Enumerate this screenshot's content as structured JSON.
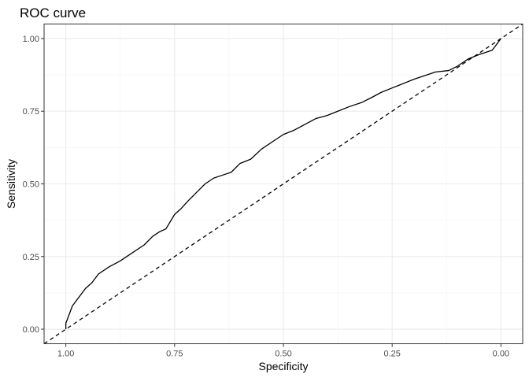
{
  "chart_data": {
    "type": "line",
    "title": "ROC curve",
    "xlabel": "Specificity",
    "ylabel": "Sensitivity",
    "x_axis_reversed": true,
    "xlim": [
      1.05,
      -0.05
    ],
    "ylim": [
      -0.05,
      1.05
    ],
    "x_ticks": [
      1.0,
      0.75,
      0.5,
      0.25,
      0.0
    ],
    "x_tick_labels": [
      "1.00",
      "0.75",
      "0.50",
      "0.25",
      "0.00"
    ],
    "y_ticks": [
      0.0,
      0.25,
      0.5,
      0.75,
      1.0
    ],
    "y_tick_labels": [
      "0.00",
      "0.25",
      "0.50",
      "0.75",
      "1.00"
    ],
    "grid": true,
    "theme": "bw",
    "series": [
      {
        "style": "solid",
        "color": "#000000",
        "x": [
          1.0,
          1.0,
          0.995,
          0.99,
          0.985,
          0.975,
          0.965,
          0.955,
          0.94,
          0.925,
          0.9,
          0.875,
          0.85,
          0.82,
          0.8,
          0.785,
          0.77,
          0.75,
          0.735,
          0.72,
          0.7,
          0.68,
          0.66,
          0.64,
          0.62,
          0.6,
          0.575,
          0.55,
          0.52,
          0.5,
          0.475,
          0.45,
          0.425,
          0.4,
          0.375,
          0.35,
          0.32,
          0.3,
          0.275,
          0.25,
          0.2,
          0.15,
          0.12,
          0.1,
          0.075,
          0.05,
          0.02,
          0.01,
          0.0
        ],
        "y": [
          0.0,
          0.02,
          0.04,
          0.06,
          0.08,
          0.1,
          0.12,
          0.14,
          0.16,
          0.19,
          0.215,
          0.235,
          0.26,
          0.29,
          0.32,
          0.335,
          0.345,
          0.395,
          0.415,
          0.44,
          0.47,
          0.5,
          0.52,
          0.53,
          0.54,
          0.57,
          0.585,
          0.62,
          0.65,
          0.67,
          0.685,
          0.705,
          0.725,
          0.735,
          0.75,
          0.765,
          0.78,
          0.795,
          0.815,
          0.83,
          0.86,
          0.885,
          0.89,
          0.905,
          0.93,
          0.945,
          0.96,
          0.98,
          1.0
        ]
      },
      {
        "style": "dashed",
        "color": "#000000",
        "x": [
          1.05,
          -0.05
        ],
        "y": [
          -0.05,
          1.05
        ]
      }
    ]
  }
}
